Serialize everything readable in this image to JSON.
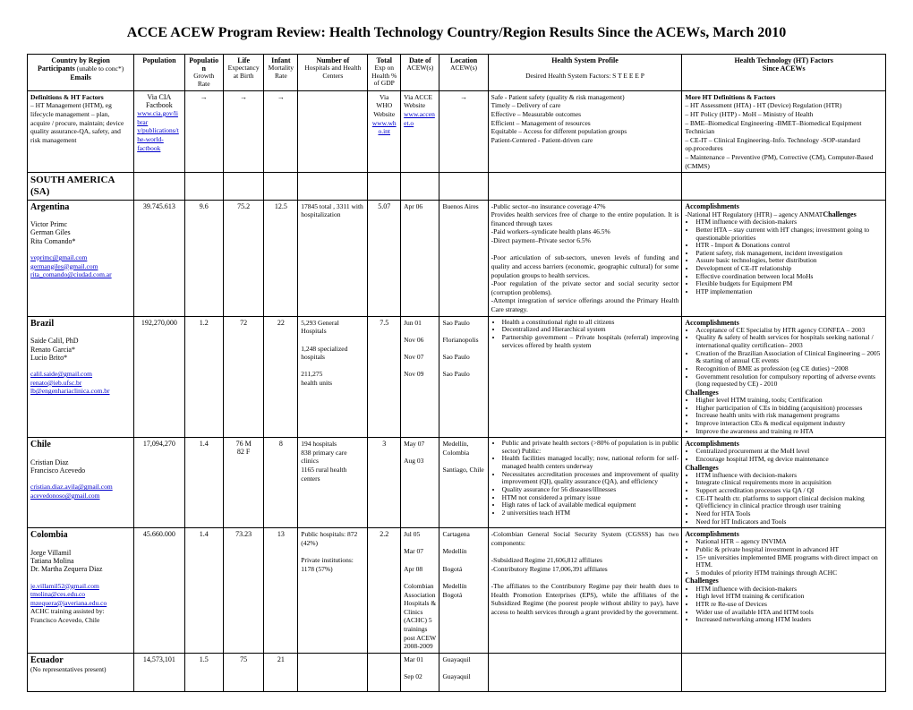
{
  "title": "ACCE ACEW Program Review: Health Technology Country/Region Results Since the ACEWs, March 2010",
  "headers": {
    "c1a": "Country by Region",
    "c1b": "Participants",
    "c1c": "(unable to conc*)",
    "c1d": "Emails",
    "c2": "Population",
    "c3a": "Population",
    "c3b": "Growth Rate",
    "c4a": "Life",
    "c4b": "Expectancy at Birth",
    "c5a": "Infant",
    "c5b": "Mortality Rate",
    "c6a": "Number of",
    "c6b": "Hospitals and Health Centers",
    "c7a": "Total",
    "c7b": "Exp on Health % of GDP",
    "c8a": "Date of",
    "c8b": "ACEW(s)",
    "c9a": "Location",
    "c9b": "ACEW(s)",
    "c10a": "Health System Profile",
    "c10b": "Desired Health System Factors:  S T E E E  P",
    "c11a": "Health Technology (HT) Factors",
    "c11b": "Since ACEWs"
  },
  "defrow": {
    "c1a": "Definitions & HT Factors",
    "c1b": "– HT Management (HTM), eg lifecycle management – plan, acquire / procure, maintain; device quality assurance-QA, safety, and risk management",
    "c2a": "Via CIA Factbook",
    "c2b": "www.cia.gov/librar y/publications/the-world-factbook",
    "arrow": "→",
    "c7a": "Via WHO Website",
    "c7b": "www.who.int",
    "c8a": "Via ACCE Website",
    "c8b": "www.accenet.o",
    "c10": "Safe - Patient safety (quality & risk management)\nTimely – Delivery of care\nEffective – Measurable outcomes\nEfficient – Management of resources\nEquitable – Access for different population groups\nPatient-Centered - Patient-driven care",
    "c11a": "More HT Definitions & Factors",
    "c11b": "– HT Assessment (HTA)          - HT (Device) Regulation (HTR)\n– HT Policy (HTP)                    - MoH – Ministry of Health\n– BME–Biomedical Engineering    -BMET–Biomedical Equipment Technician\n– CE-IT – Clinical Engineering–Info. Technology -SOP-standard op.procedures\n– Maintenance – Preventive (PM), Corrective (CM), Computer-Based (CMMS)"
  },
  "region": "SOUTH AMERICA (SA)",
  "rows": [
    {
      "country": "Argentina",
      "participants": [
        "Victor Primc",
        "German Giles",
        "Rita Comando*"
      ],
      "emails": [
        "veprimc@gmail.com",
        "germangiles@gmail.com",
        "rita_comando@ciudad.com.ar"
      ],
      "pop": "39.745.613",
      "growth": "9.6",
      "life": "75.2",
      "infant": "12.5",
      "hosp": "17845 total , 3311 with hospitalization",
      "gdp": "5.07",
      "dates": [
        "Apr 06"
      ],
      "locs": [
        "Buenos Aires"
      ],
      "profile": "-Public sector–no insurance coverage    47%\n    Provides health services free of charge to the entire population. It is financed through taxes\n-Paid workers–syndicate health plans 46.5%\n-Direct payment–Private sector           6.5%\n\n-Poor articulation of sub-sectors, uneven levels of funding and quality and access barriers (economic, geographic cultural) for some population groups to health services.\n-Poor regulation of the private sector and social security sector (corruption problems).\n-Attempt integration of service offerings around the Primary Health Care strategy.",
      "acc_title": "Accomplishments",
      "acc": [
        "-National HT Regulatory (HTR) – agency ANMAT"
      ],
      "chal_title": "Challenges",
      "chal": [
        "HTM influence with decision-makers",
        "Better HTA – stay current with HT changes; investment going to questionable priorities",
        "HTR - Import & Donations control",
        "Patient safety, risk management, incident investigation",
        "Assure basic technologies, better distribution",
        "Development of CE-IT relationship",
        "Effective coordination between local MoHs",
        "Flexible budgets for Equipment PM",
        "HTP implementation"
      ]
    },
    {
      "country": "Brazil",
      "participants": [
        "Saide Calil, PhD",
        "Renato Garcia*",
        "Lucio Brito*"
      ],
      "emails": [
        "calil.saide@gmail.com",
        "renato@ieb.ufsc.br",
        "lb@engenhariaclinica.com.br"
      ],
      "pop": "192,270,000",
      "growth": "1.2",
      "life": "72",
      "infant": "22",
      "hosp": "5,293 General Hospitals\n\n1,248 specialized hospitals\n\n211,275\nhealth units",
      "gdp": "7.5",
      "dates": [
        "Jun 01",
        "Nov 06",
        "Nov 07",
        "Nov 09"
      ],
      "locs": [
        "Sao Paulo",
        "Florianopolis",
        "Sao Paulo",
        "Sao Paulo"
      ],
      "profile_items": [
        "Health a constitutional right to all citizens",
        "Decentralized and Hierarchical system",
        "Partnership government – Private hospitals (referral) improving services offered by health system"
      ],
      "acc_title": "Accomplishments",
      "acc": [
        "Acceptance of CE Specialist by HTR agency CONFEA – 2003",
        "Quality & safety of health services for hospitals seeking national / international quality certification– 2003",
        "Creation of the Brazilian Association of Clinical Engineering – 2005 & starting of annual CE events",
        "Recognition of BME as profession (eg CE duties) ~2008",
        "Government resolution for compulsory reporting of adverse events (long requested by CE) - 2010"
      ],
      "chal_title": "Challenges",
      "chal": [
        "Higher level HTM training, tools; Certification",
        "Higher participation of CEs in bidding (acquisition) processes",
        "Increase health units with risk management programs",
        "Improve interaction CEs & medical equipment industry",
        "Improve the awareness and training re HTA"
      ]
    },
    {
      "country": "Chile",
      "participants": [
        "Cristian Diaz",
        "Francisco Acevedo"
      ],
      "emails": [
        "cristian.diaz.avila@gmail.com",
        "acevedonoso@gmail.com"
      ],
      "pop": "17,094,270",
      "growth": "1.4",
      "life": "76 M\n82 F",
      "infant": "8",
      "hosp": "194 hospitals\n838 primary care clinics\n1165 rural health centers",
      "gdp": "3",
      "dates": [
        "May 07",
        "Aug 03"
      ],
      "locs": [
        "Medellín, Colombia",
        "Santiago, Chile"
      ],
      "profile_items": [
        "Public and private health sectors (>80% of population is in public sector)                    Public:",
        "Health facilities managed locally; now, national reform for self-managed health centers underway",
        "Necessitates accreditation processes and improvement of quality improvement (QI), quality assurance (QA), and efficiency",
        "Quality assurance for 56 diseases/illnesses",
        "HTM not considered a primary issue",
        "High rates of lack of available medical equipment",
        "2 universities teach HTM"
      ],
      "profile_inset": "–",
      "acc_title": "Accomplishments",
      "acc": [
        "Centralized procurement at the MoH level",
        "Encourage hospital HTM, eg device maintenance"
      ],
      "chal_title": "Challenges",
      "chal": [
        "HTM influence with decision-makers",
        "Integrate clinical requirements more in acquisition",
        "Support accreditation processes via QA / QI",
        "CE-IT health ctr. platforms to support clinical decision making",
        "QI/efficiency in clinical practice through user training",
        "Need for HTA Tools",
        "Need for HT Indicators and Tools"
      ]
    },
    {
      "country": "Colombia",
      "participants": [
        "Jorge Villamil",
        "Tatiana Molina",
        "Dr. Martha Zequera Diaz"
      ],
      "emails": [
        "je.villamil52@gmail.com",
        "tmolina@ces.edu.co",
        "mzequera@javeriana.edu.co"
      ],
      "extra": "ACHC training assisted by:\nFrancisco Acevedo, Chile",
      "pop": "45.660.000",
      "growth": "1.4",
      "life": "73.23",
      "infant": "13",
      "hosp": "Public hospitals: 872 (42%)\n\nPrivate institutions: 1178 (57%)",
      "gdp": "2.2",
      "dates": [
        "Jul 05",
        "Mar 07",
        "Apr 08"
      ],
      "dates_extra": "Colombian Association Hospitals & Clinics (ACHC) 5 trainings post ACEW 2008-2009",
      "locs": [
        "Cartagena",
        "Medellín",
        "Bogotá",
        "Medellín Bogotá"
      ],
      "profile": "-Colombian General Social Security System (CGSSS) has two components:\n\n-Subsidized Regime 21,606,812 affiliates\n-Contributory Regime 17,006,391 affiliates\n\n-The affiliates to the Contributory Regime pay their health dues to Health Promotion Enterprises (EPS), while the affiliates of the Subsidized Regime (the poorest people without ability to pay), have access to health services through a grant provided by the government.",
      "acc_title": "Accomplishments",
      "acc": [
        "National HTR – agency INVIMA",
        "Public & private hospital investment in advanced HT",
        "15+ universities implemented BME programs with direct impact on HTM.",
        "5 modules of priority HTM trainings through ACHC"
      ],
      "chal_title": "Challenges",
      "chal": [
        "HTM influence with decision-makers",
        "High level HTM training & certification",
        "HTR re Re-use of Devices",
        "Wider use of available HTA and HTM tools",
        "Increased networking among HTM leaders"
      ]
    },
    {
      "country": "Ecuador",
      "note": "(No representatives present)",
      "pop": "14,573,101",
      "growth": "1.5",
      "life": "75",
      "infant": "21",
      "dates": [
        "Mar 01",
        "Sep 02"
      ],
      "locs": [
        "Guayaquil",
        "Guayaquil"
      ]
    }
  ]
}
